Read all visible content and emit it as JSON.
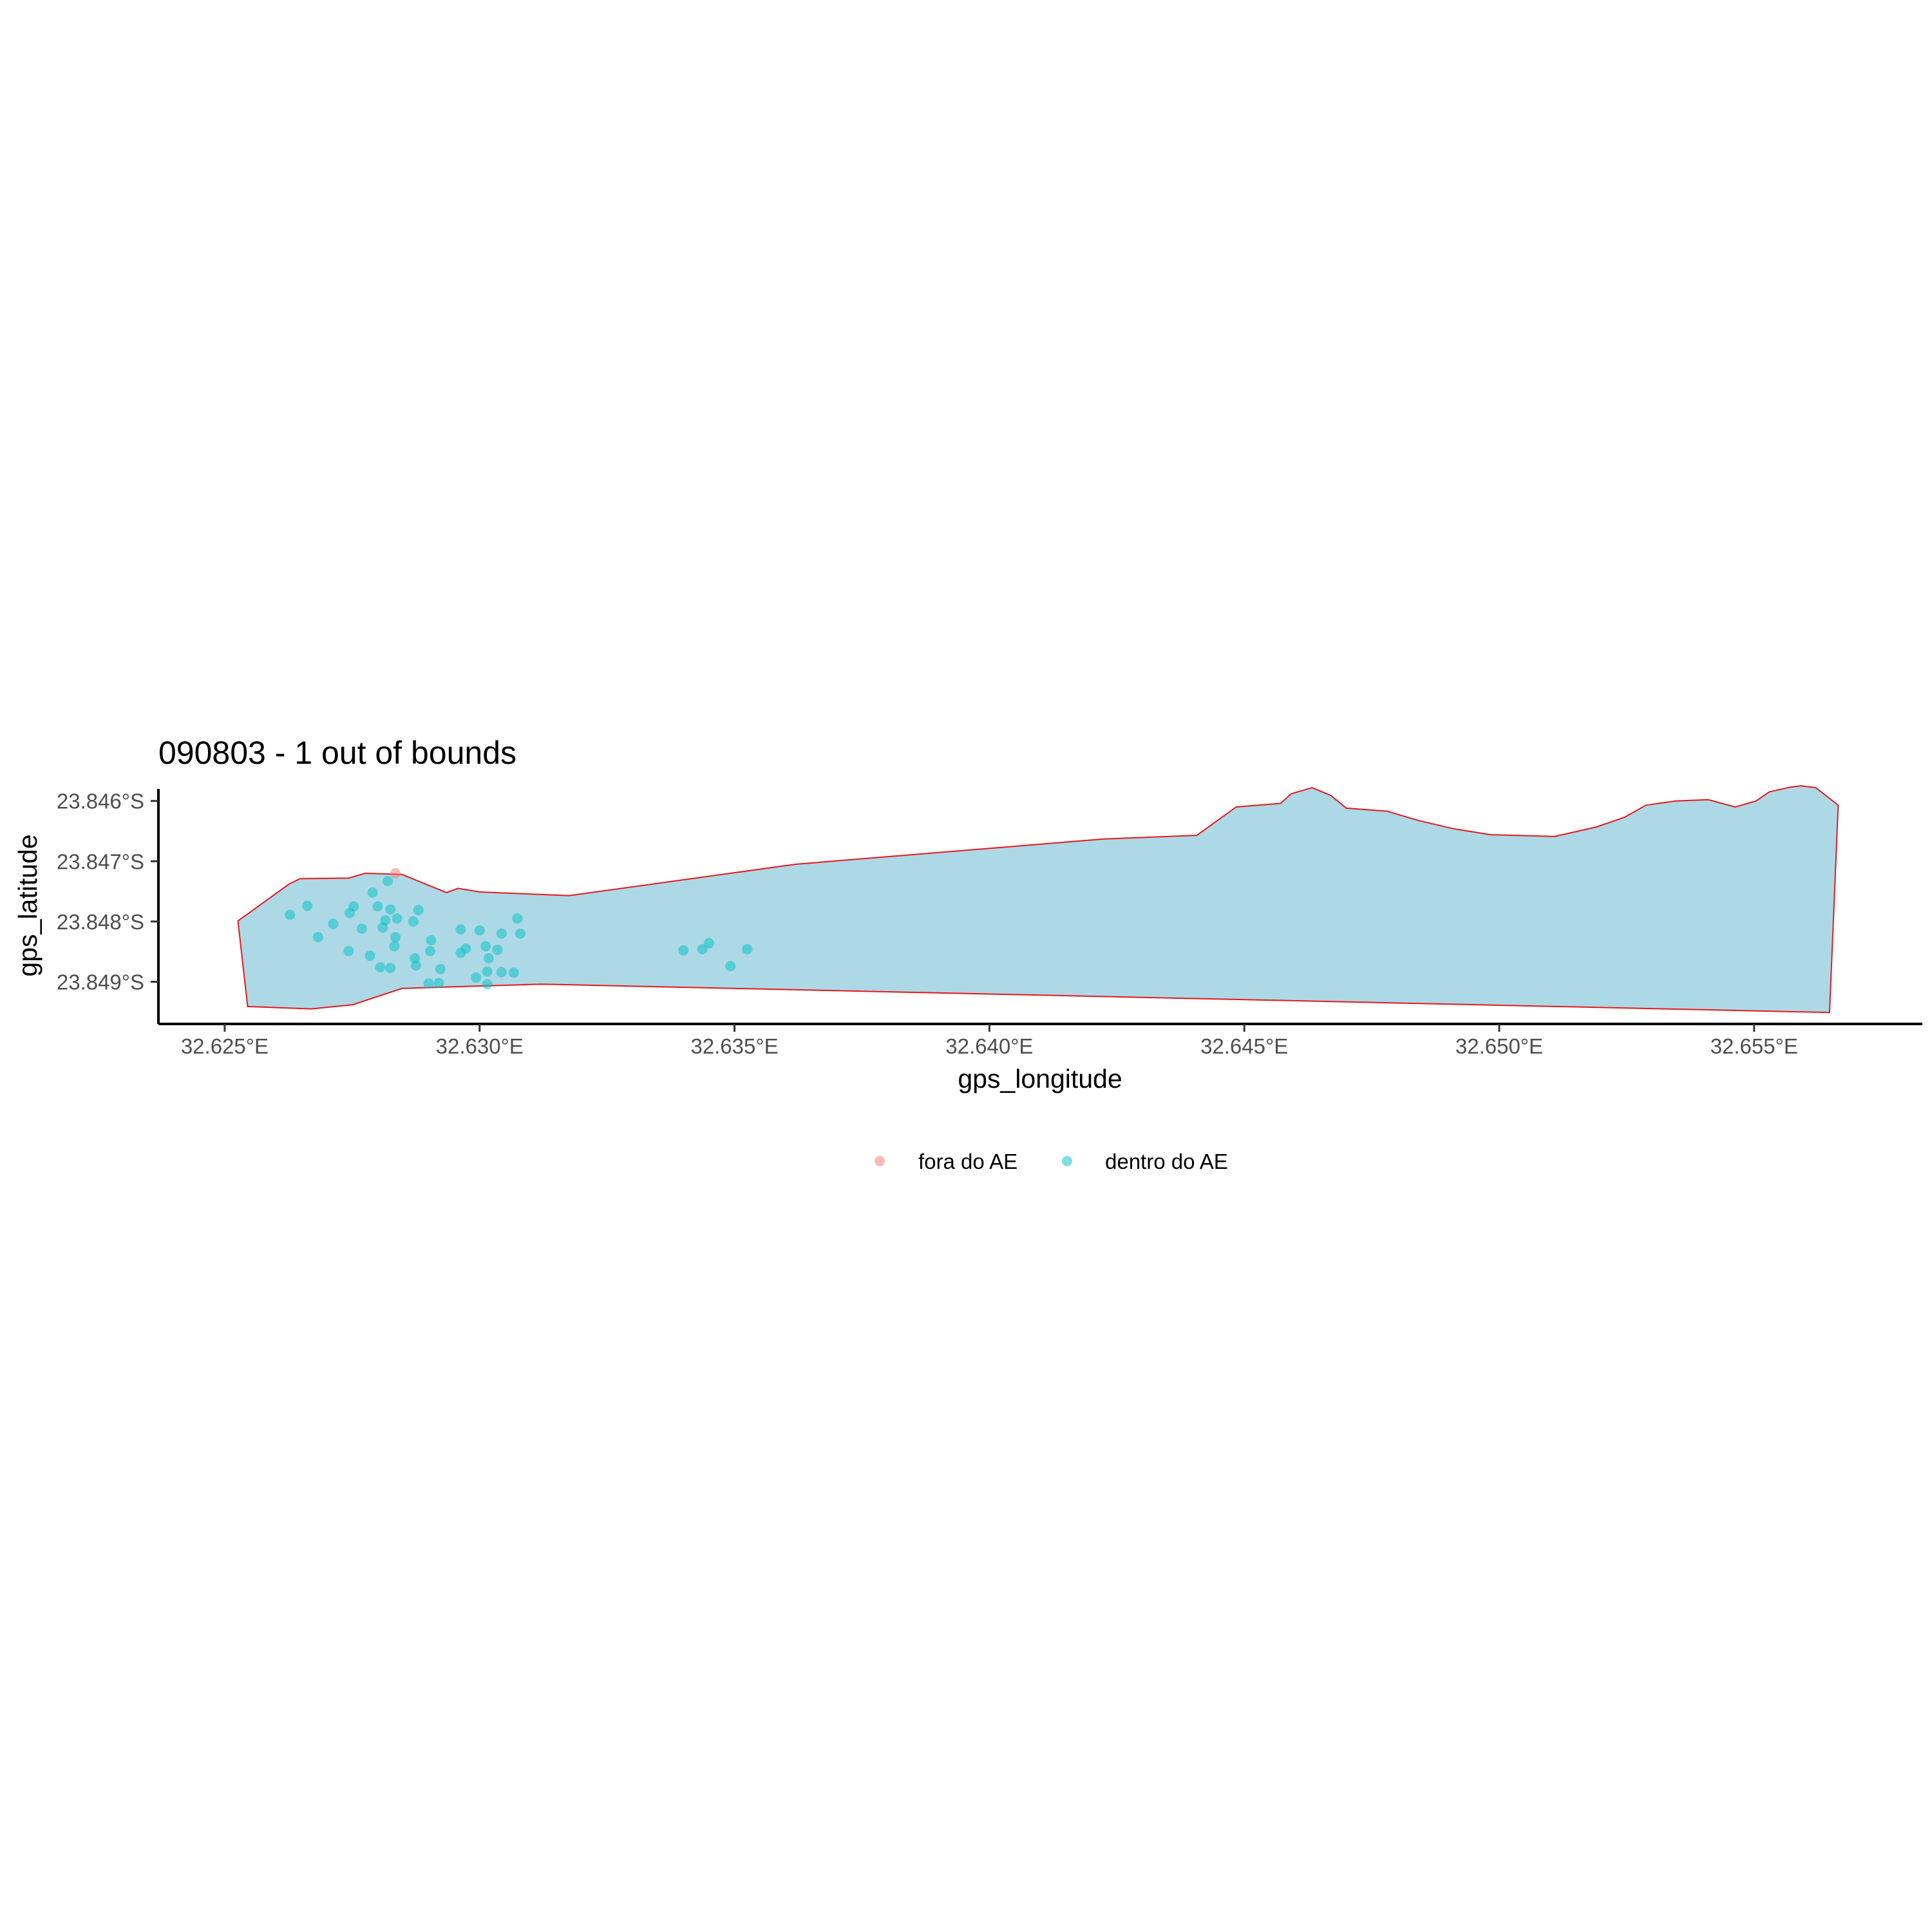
{
  "chart_data": {
    "type": "scatter",
    "title": "090803 - 1 out of bounds",
    "xlabel": "gps_longitude",
    "ylabel": "gps_latitude",
    "xlim": [
      32.6237,
      32.6583
    ],
    "ylim": [
      -23.8497,
      -23.8458
    ],
    "x_ticks": [
      32.625,
      32.63,
      32.635,
      32.64,
      32.645,
      32.65,
      32.655
    ],
    "x_tick_labels": [
      "32.625°E",
      "32.630°E",
      "32.635°E",
      "32.640°E",
      "32.645°E",
      "32.650°E",
      "32.655°E"
    ],
    "y_ticks": [
      -23.846,
      -23.847,
      -23.848,
      -23.849
    ],
    "y_tick_labels": [
      "23.846°S",
      "23.847°S",
      "23.848°S",
      "23.849°S"
    ],
    "grid": false,
    "legend_position": "bottom",
    "boundary_polygon": {
      "fill": "#add8e6",
      "stroke": "#e41a1c",
      "coords": [
        [
          32.62526,
          -23.84799
        ],
        [
          32.62626,
          -23.84738
        ],
        [
          32.62648,
          -23.84729
        ],
        [
          32.62743,
          -23.84728
        ],
        [
          32.62776,
          -23.8472
        ],
        [
          32.62848,
          -23.84722
        ],
        [
          32.62935,
          -23.84752
        ],
        [
          32.62958,
          -23.84745
        ],
        [
          32.63,
          -23.84751
        ],
        [
          32.63176,
          -23.84757
        ],
        [
          32.6362,
          -23.84705
        ],
        [
          32.64225,
          -23.84663
        ],
        [
          32.64407,
          -23.84657
        ],
        [
          32.64484,
          -23.8461
        ],
        [
          32.64571,
          -23.84604
        ],
        [
          32.64592,
          -23.84588
        ],
        [
          32.64633,
          -23.84578
        ],
        [
          32.6467,
          -23.84591
        ],
        [
          32.647,
          -23.84612
        ],
        [
          32.6478,
          -23.84617
        ],
        [
          32.6484,
          -23.84632
        ],
        [
          32.6491,
          -23.84646
        ],
        [
          32.64983,
          -23.84656
        ],
        [
          32.65109,
          -23.84659
        ],
        [
          32.65191,
          -23.84643
        ],
        [
          32.65246,
          -23.84627
        ],
        [
          32.65288,
          -23.84607
        ],
        [
          32.65346,
          -23.846
        ],
        [
          32.6541,
          -23.84598
        ],
        [
          32.65463,
          -23.8461
        ],
        [
          32.65504,
          -23.846
        ],
        [
          32.6553,
          -23.84585
        ],
        [
          32.65571,
          -23.84577
        ],
        [
          32.65592,
          -23.84575
        ],
        [
          32.65621,
          -23.84578
        ],
        [
          32.65665,
          -23.84607
        ],
        [
          32.65648,
          -23.84951
        ],
        [
          32.6312,
          -23.84904
        ],
        [
          32.62848,
          -23.84911
        ],
        [
          32.62751,
          -23.84938
        ],
        [
          32.6267,
          -23.84945
        ],
        [
          32.62545,
          -23.84941
        ]
      ]
    },
    "series": [
      {
        "name": "fora do AE",
        "color": "#F8766D",
        "points": [
          [
            32.62835,
            -23.8472
          ]
        ]
      },
      {
        "name": "dentro do AE",
        "color": "#00BFC4",
        "points": [
          [
            32.62628,
            -23.84789
          ],
          [
            32.62662,
            -23.84774
          ],
          [
            32.62683,
            -23.84826
          ],
          [
            32.62713,
            -23.84804
          ],
          [
            32.62745,
            -23.84786
          ],
          [
            32.62753,
            -23.84775
          ],
          [
            32.62769,
            -23.84812
          ],
          [
            32.6279,
            -23.84752
          ],
          [
            32.628,
            -23.84775
          ],
          [
            32.6281,
            -23.8481
          ],
          [
            32.62815,
            -23.84798
          ],
          [
            32.62825,
            -23.8478
          ],
          [
            32.6282,
            -23.84733
          ],
          [
            32.62838,
            -23.84795
          ],
          [
            32.62835,
            -23.84826
          ],
          [
            32.62833,
            -23.84841
          ],
          [
            32.6287,
            -23.848
          ],
          [
            32.6288,
            -23.84781
          ],
          [
            32.62743,
            -23.84849
          ],
          [
            32.62785,
            -23.84857
          ],
          [
            32.62805,
            -23.84876
          ],
          [
            32.62825,
            -23.84877
          ],
          [
            32.62873,
            -23.84861
          ],
          [
            32.62875,
            -23.84873
          ],
          [
            32.62905,
            -23.84831
          ],
          [
            32.62903,
            -23.84849
          ],
          [
            32.629,
            -23.84903
          ],
          [
            32.6292,
            -23.84902
          ],
          [
            32.62923,
            -23.84879
          ],
          [
            32.62963,
            -23.84813
          ],
          [
            32.62963,
            -23.84852
          ],
          [
            32.62973,
            -23.84845
          ],
          [
            32.62993,
            -23.84893
          ],
          [
            32.63,
            -23.84815
          ],
          [
            32.63012,
            -23.84841
          ],
          [
            32.63018,
            -23.84861
          ],
          [
            32.63015,
            -23.84883
          ],
          [
            32.63015,
            -23.84904
          ],
          [
            32.63035,
            -23.84847
          ],
          [
            32.63043,
            -23.8482
          ],
          [
            32.63043,
            -23.84884
          ],
          [
            32.63067,
            -23.84885
          ],
          [
            32.63074,
            -23.84795
          ],
          [
            32.6308,
            -23.8482
          ],
          [
            32.634,
            -23.84848
          ],
          [
            32.63437,
            -23.84846
          ],
          [
            32.6345,
            -23.84836
          ],
          [
            32.63492,
            -23.84874
          ],
          [
            32.63525,
            -23.84846
          ]
        ]
      }
    ]
  }
}
